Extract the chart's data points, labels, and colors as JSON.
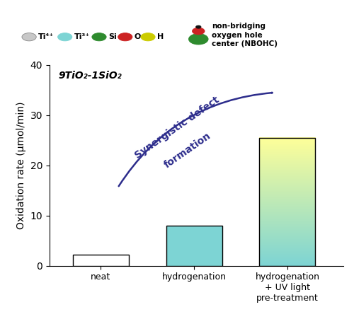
{
  "categories": [
    "neat",
    "hydrogenation",
    "hydrogenation\n+ UV light\npre-treatment"
  ],
  "values": [
    2.2,
    8.0,
    25.5
  ],
  "ylabel": "Oxidation rate (μmol/min)",
  "ylim": [
    0,
    40
  ],
  "yticks": [
    0,
    10,
    20,
    30,
    40
  ],
  "formula_label": "9TiO₂-1SiO₂",
  "arrow_text_line1": "Synergistic defect",
  "arrow_text_line2": "formation",
  "arrow_color": "#2D2D8C",
  "background_color": "#ffffff",
  "bar1_color": "#ffffff",
  "bar2_color": "#7DD4D4",
  "bar3_color_bottom": "#7DD4D4",
  "bar3_color_top": "#FFFF99",
  "legend_ti4_color": "#C8C8C8",
  "legend_ti3_color": "#7DD4D4",
  "legend_si_color": "#2E8B2E",
  "legend_o_color": "#CC2222",
  "legend_h_color": "#CCCC00",
  "legend_nbohc_green": "#2E8B2E",
  "legend_nbohc_red": "#CC2222",
  "legend_nbohc_black": "#111111",
  "bar_width": 0.6,
  "bar_positions": [
    0,
    1,
    2
  ]
}
